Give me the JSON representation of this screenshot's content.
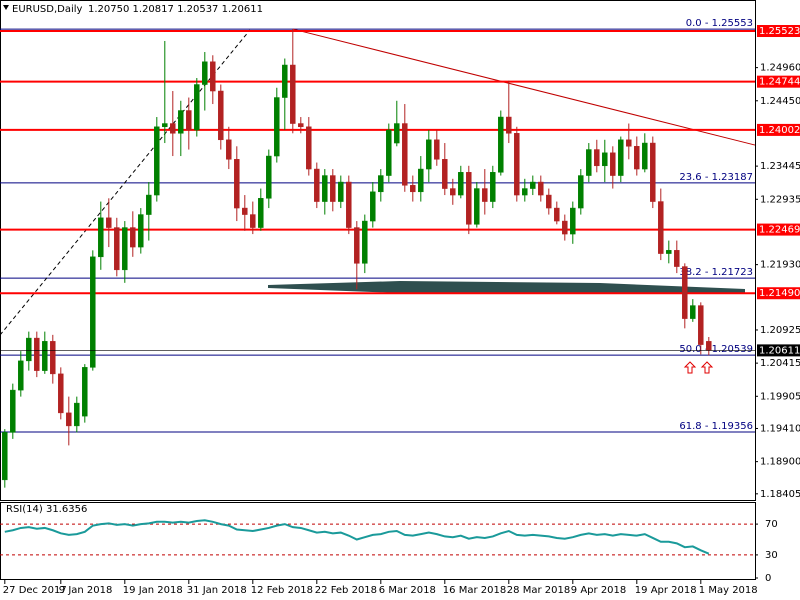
{
  "chart_data": {
    "type": "candlestick",
    "title": "EURUSD,Daily",
    "subtitle": "1.20750 1.20817 1.20537 1.20611",
    "up_color": "#008000",
    "down_color": "#b22222",
    "candles": [
      [
        1.1862,
        1.194,
        1.185,
        1.1935
      ],
      [
        1.1935,
        1.201,
        1.1925,
        1.2
      ],
      [
        1.2,
        1.206,
        1.199,
        1.2045
      ],
      [
        1.2045,
        1.209,
        1.203,
        1.208
      ],
      [
        1.208,
        1.209,
        1.202,
        1.203
      ],
      [
        1.203,
        1.209,
        1.2025,
        1.2075
      ],
      [
        1.2075,
        1.2085,
        1.201,
        1.2025
      ],
      [
        1.2025,
        1.2035,
        1.1955,
        1.1965
      ],
      [
        1.1965,
        1.199,
        1.1915,
        1.1945
      ],
      [
        1.1945,
        1.199,
        1.1935,
        1.198
      ],
      [
        1.196,
        1.204,
        1.195,
        1.2035
      ],
      [
        1.2035,
        1.2215,
        1.203,
        1.2205
      ],
      [
        1.2205,
        1.229,
        1.2185,
        1.2265
      ],
      [
        1.2265,
        1.2295,
        1.222,
        1.225
      ],
      [
        1.225,
        1.2265,
        1.2175,
        1.2185
      ],
      [
        1.2185,
        1.226,
        1.2165,
        1.225
      ],
      [
        1.225,
        1.2275,
        1.2205,
        1.222
      ],
      [
        1.222,
        1.228,
        1.221,
        1.227
      ],
      [
        1.227,
        1.232,
        1.223,
        1.23
      ],
      [
        1.23,
        1.242,
        1.229,
        1.2405
      ],
      [
        1.2405,
        1.2537,
        1.238,
        1.241
      ],
      [
        1.241,
        1.246,
        1.236,
        1.2395
      ],
      [
        1.2395,
        1.2445,
        1.236,
        1.243
      ],
      [
        1.243,
        1.245,
        1.237,
        1.24
      ],
      [
        1.24,
        1.248,
        1.239,
        1.247
      ],
      [
        1.247,
        1.252,
        1.243,
        1.2505
      ],
      [
        1.2505,
        1.2515,
        1.244,
        1.246
      ],
      [
        1.246,
        1.247,
        1.237,
        1.2385
      ],
      [
        1.2385,
        1.2405,
        1.234,
        1.2355
      ],
      [
        1.2355,
        1.2375,
        1.226,
        1.228
      ],
      [
        1.228,
        1.23,
        1.2245,
        1.227
      ],
      [
        1.227,
        1.229,
        1.224,
        1.225
      ],
      [
        1.225,
        1.231,
        1.2245,
        1.2295
      ],
      [
        1.2295,
        1.237,
        1.228,
        1.236
      ],
      [
        1.236,
        1.2465,
        1.235,
        1.245
      ],
      [
        1.245,
        1.251,
        1.24,
        1.25
      ],
      [
        1.25,
        1.2555,
        1.2395,
        1.241
      ],
      [
        1.241,
        1.242,
        1.2395,
        1.2405
      ],
      [
        1.2405,
        1.242,
        1.233,
        1.234
      ],
      [
        1.234,
        1.235,
        1.228,
        1.229
      ],
      [
        1.229,
        1.234,
        1.227,
        1.233
      ],
      [
        1.233,
        1.234,
        1.2275,
        1.229
      ],
      [
        1.229,
        1.233,
        1.228,
        1.232
      ],
      [
        1.232,
        1.233,
        1.224,
        1.225
      ],
      [
        1.225,
        1.226,
        1.2155,
        1.2195
      ],
      [
        1.2195,
        1.227,
        1.218,
        1.226
      ],
      [
        1.226,
        1.232,
        1.225,
        1.2305
      ],
      [
        1.2305,
        1.234,
        1.229,
        1.233
      ],
      [
        1.233,
        1.241,
        1.232,
        1.24
      ],
      [
        1.238,
        1.2445,
        1.2375,
        1.241
      ],
      [
        1.241,
        1.244,
        1.2305,
        1.2315
      ],
      [
        1.2315,
        1.233,
        1.229,
        1.2305
      ],
      [
        1.2305,
        1.236,
        1.229,
        1.234
      ],
      [
        1.234,
        1.24,
        1.232,
        1.2385
      ],
      [
        1.2385,
        1.24,
        1.2345,
        1.2355
      ],
      [
        1.2355,
        1.238,
        1.23,
        1.231
      ],
      [
        1.231,
        1.2325,
        1.2285,
        1.23
      ],
      [
        1.23,
        1.2345,
        1.2295,
        1.2335
      ],
      [
        1.2335,
        1.2345,
        1.224,
        1.2255
      ],
      [
        1.2255,
        1.232,
        1.225,
        1.231
      ],
      [
        1.231,
        1.234,
        1.227,
        1.229
      ],
      [
        1.229,
        1.2345,
        1.228,
        1.2335
      ],
      [
        1.2335,
        1.243,
        1.233,
        1.242
      ],
      [
        1.242,
        1.2476,
        1.238,
        1.2395
      ],
      [
        1.2395,
        1.2405,
        1.229,
        1.23
      ],
      [
        1.23,
        1.2325,
        1.229,
        1.231
      ],
      [
        1.231,
        1.233,
        1.23,
        1.232
      ],
      [
        1.232,
        1.233,
        1.229,
        1.23
      ],
      [
        1.23,
        1.231,
        1.227,
        1.228
      ],
      [
        1.228,
        1.229,
        1.2255,
        1.226
      ],
      [
        1.226,
        1.227,
        1.223,
        1.224
      ],
      [
        1.224,
        1.229,
        1.2225,
        1.228
      ],
      [
        1.228,
        1.234,
        1.227,
        1.233
      ],
      [
        1.233,
        1.238,
        1.232,
        1.237
      ],
      [
        1.237,
        1.2385,
        1.2335,
        1.2345
      ],
      [
        1.2345,
        1.2385,
        1.232,
        1.2365
      ],
      [
        1.2365,
        1.2375,
        1.231,
        1.233
      ],
      [
        1.233,
        1.239,
        1.232,
        1.2385
      ],
      [
        1.2385,
        1.241,
        1.2355,
        1.2375
      ],
      [
        1.2375,
        1.239,
        1.233,
        1.234
      ],
      [
        1.234,
        1.2395,
        1.2335,
        1.238
      ],
      [
        1.238,
        1.239,
        1.228,
        1.229
      ],
      [
        1.229,
        1.231,
        1.22,
        1.221
      ],
      [
        1.221,
        1.223,
        1.2195,
        1.2215
      ],
      [
        1.2215,
        1.223,
        1.218,
        1.219
      ],
      [
        1.219,
        1.2195,
        1.2095,
        1.211
      ],
      [
        1.211,
        1.214,
        1.2105,
        1.213
      ],
      [
        1.213,
        1.2135,
        1.2055,
        1.207
      ],
      [
        1.2075,
        1.20817,
        1.20537,
        1.20611
      ]
    ],
    "xlim": [
      -0.6,
      93.775
    ],
    "xticks": [
      {
        "value": 0,
        "label": "27 Dec 2017"
      },
      {
        "value": 7,
        "label": "9 Jan 2018"
      },
      {
        "value": 15,
        "label": "19 Jan 2018"
      },
      {
        "value": 23,
        "label": "31 Jan 2018"
      },
      {
        "value": 31,
        "label": "12 Feb 2018"
      },
      {
        "value": 39,
        "label": "22 Feb 2018"
      },
      {
        "value": 47,
        "label": "6 Mar 2018"
      },
      {
        "value": 55,
        "label": "16 Mar 2018"
      },
      {
        "value": 63,
        "label": "28 Mar 2018"
      },
      {
        "value": 71,
        "label": "9 Apr 2018"
      },
      {
        "value": 79,
        "label": "19 Apr 2018"
      },
      {
        "value": 87,
        "label": "1 May 2018"
      }
    ],
    "ylim": [
      1.1831,
      1.26
    ],
    "yticks": [
      {
        "value": 1.2496,
        "label": "1.24960"
      },
      {
        "value": 1.2445,
        "label": "1.24450"
      },
      1.23445,
      1.22935,
      {
        "value": 1.2193,
        "label": "1.21930"
      },
      1.20925,
      1.20415,
      1.19905,
      {
        "value": 1.1941,
        "label": "1.19410"
      },
      {
        "value": 1.189,
        "label": "1.18900"
      },
      1.18405
    ],
    "level_color": "#ff0000",
    "levels": [
      1.25523,
      1.24744,
      1.24002,
      1.22469,
      {
        "value": 1.2149,
        "label": "1.21490"
      }
    ],
    "fib_color": "#000080",
    "fib_levels": [
      {
        "value": 1.25553,
        "label": "0.0 - 1.25553"
      },
      {
        "value": 1.23187,
        "label": "23.6 - 1.23187"
      },
      {
        "value": 1.21723,
        "label": "38.2 - 1.21723"
      },
      {
        "value": 1.20539,
        "label": "50.0 - 1.20539"
      },
      {
        "value": 1.19356,
        "label": "61.8 - 1.19356"
      }
    ],
    "current_price": 1.20611,
    "trendlines": [
      {
        "color": "#c00000",
        "dashed": false,
        "x": [
          36,
          93.775
        ],
        "y": [
          1.25553,
          1.23769
        ]
      },
      {
        "color": "#000000",
        "dashed": true,
        "x": [
          -0.6,
          30.65
        ],
        "y": [
          1.20847,
          1.2554
        ]
      }
    ],
    "rsi": {
      "title": "RSI(14) 31.6356",
      "color": "#1a9a9a",
      "ylim": [
        0,
        100
      ],
      "yticks": [
        0,
        30,
        70
      ],
      "levels": [
        30,
        70
      ],
      "values": [
        60,
        62,
        65,
        66,
        64,
        65,
        62,
        58,
        56,
        57,
        60,
        68,
        70,
        71,
        69,
        70,
        68,
        70,
        71,
        73,
        73,
        72,
        73,
        72,
        74,
        75,
        73,
        70,
        68,
        63,
        62,
        61,
        63,
        65,
        68,
        70,
        66,
        65,
        62,
        59,
        60,
        58,
        59,
        55,
        50,
        53,
        56,
        57,
        60,
        61,
        56,
        55,
        57,
        59,
        57,
        54,
        53,
        55,
        51,
        53,
        52,
        54,
        58,
        61,
        56,
        55,
        56,
        55,
        54,
        52,
        51,
        53,
        56,
        58,
        56,
        57,
        55,
        57,
        56,
        55,
        57,
        52,
        47,
        47,
        45,
        40,
        41,
        36,
        31.6356
      ]
    }
  }
}
